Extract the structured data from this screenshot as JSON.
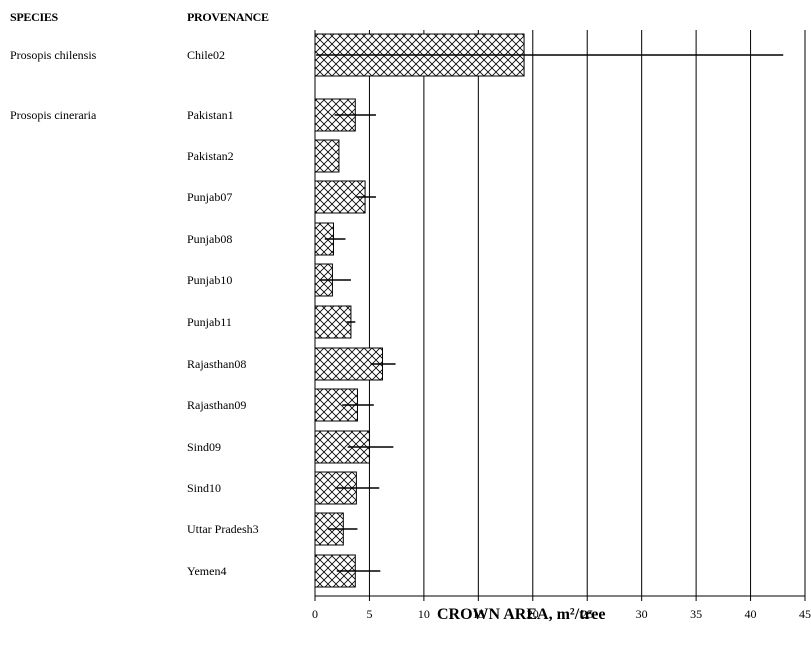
{
  "headers": {
    "species": "SPECIES",
    "provenance": "PROVENANCE"
  },
  "rows": [
    {
      "species": "Prosopis chilensis",
      "provenance": "Chile02"
    },
    {
      "species": "Prosopis cineraria",
      "provenance": "Pakistan1"
    },
    {
      "species": "",
      "provenance": "Pakistan2"
    },
    {
      "species": "",
      "provenance": "Punjab07"
    },
    {
      "species": "",
      "provenance": "Punjab08"
    },
    {
      "species": "",
      "provenance": "Punjab10"
    },
    {
      "species": "",
      "provenance": "Punjab11"
    },
    {
      "species": "",
      "provenance": "Rajasthan08"
    },
    {
      "species": "",
      "provenance": "Rajasthan09"
    },
    {
      "species": "",
      "provenance": "Sind09"
    },
    {
      "species": "",
      "provenance": "Sind10"
    },
    {
      "species": "",
      "provenance": "Uttar Pradesh3"
    },
    {
      "species": "",
      "provenance": "Yemen4"
    }
  ],
  "chart_data": {
    "type": "bar",
    "orientation": "horizontal",
    "categories": [
      "Chile02",
      "Pakistan1",
      "Pakistan2",
      "Punjab07",
      "Punjab08",
      "Punjab10",
      "Punjab11",
      "Rajasthan08",
      "Rajasthan09",
      "Sind09",
      "Sind10",
      "Uttar Pradesh3",
      "Yemen4"
    ],
    "values": [
      19.2,
      3.7,
      2.2,
      4.6,
      1.7,
      1.6,
      3.3,
      6.2,
      3.9,
      5.0,
      3.8,
      2.6,
      3.7
    ],
    "error_low": [
      0.1,
      1.8,
      null,
      3.8,
      0.9,
      0.5,
      2.9,
      5.1,
      2.5,
      3.0,
      2.0,
      1.2,
      2.0
    ],
    "error_high": [
      43.0,
      5.6,
      null,
      5.6,
      2.8,
      3.3,
      3.7,
      7.4,
      5.4,
      7.2,
      5.9,
      3.9,
      6.0
    ],
    "xlabel": "CROWN AREA, m²/tree",
    "xlim": [
      0,
      45
    ],
    "xticks": [
      "0",
      "5",
      "10",
      "15",
      "20",
      "25",
      "30",
      "35",
      "40",
      "45"
    ],
    "grid": "vertical",
    "fill_pattern": "crosshatch",
    "colors": {
      "bar_fill": "#ffffff",
      "hatch": "#000000",
      "axis": "#000000",
      "grid": "#000000"
    }
  }
}
